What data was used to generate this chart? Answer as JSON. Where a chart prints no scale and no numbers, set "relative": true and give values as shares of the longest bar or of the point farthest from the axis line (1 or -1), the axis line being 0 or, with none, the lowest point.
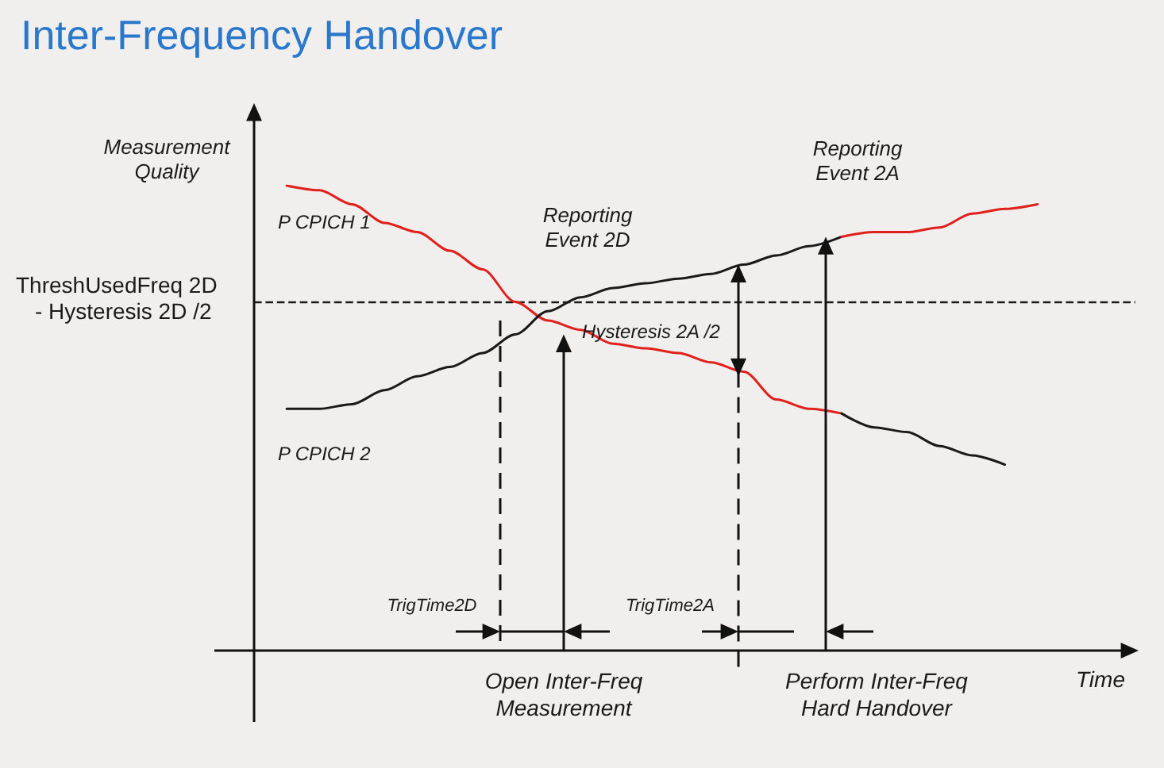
{
  "chart_data": {
    "type": "line",
    "title": "Inter-Frequency Handover",
    "xlabel": "Time",
    "ylabel": "Measurement Quality",
    "relative": true,
    "legend": false,
    "grid": false,
    "marker": "none",
    "line_style": "solid",
    "categories": [
      null,
      null,
      null,
      null,
      null,
      null,
      null,
      null,
      null,
      null,
      null,
      null,
      null,
      null,
      null,
      null,
      null,
      null,
      null,
      null,
      null,
      null,
      null,
      null,
      null,
      null,
      null,
      null
    ],
    "series": [
      {
        "name": "P CPICH 1",
        "color": "#e0201b",
        "values": [
          null,
          1.0,
          0.99,
          0.96,
          0.92,
          0.9,
          0.86,
          0.82,
          0.75,
          0.71,
          0.69,
          0.66,
          0.65,
          0.64,
          0.62,
          0.6,
          0.54,
          0.52,
          0.51,
          null,
          null,
          null,
          null,
          null,
          null,
          null,
          null,
          null
        ]
      },
      {
        "color": "#1a1a1a",
        "values": [
          null,
          null,
          null,
          null,
          null,
          null,
          null,
          null,
          null,
          null,
          null,
          null,
          null,
          null,
          null,
          null,
          null,
          null,
          0.51,
          0.48,
          0.47,
          0.44,
          0.42,
          0.4,
          null,
          null,
          null,
          null
        ]
      },
      {
        "name": "P CPICH 2",
        "color": "#1a1a1a",
        "values": [
          null,
          0.52,
          0.52,
          0.53,
          0.56,
          0.59,
          0.61,
          0.64,
          0.68,
          0.73,
          0.76,
          0.78,
          0.79,
          0.8,
          0.81,
          0.83,
          0.85,
          0.87,
          0.89,
          null,
          null,
          null,
          null,
          null,
          null,
          null,
          null,
          null
        ]
      },
      {
        "color": "#e0201b",
        "values": [
          null,
          null,
          null,
          null,
          null,
          null,
          null,
          null,
          null,
          null,
          null,
          null,
          null,
          null,
          null,
          null,
          null,
          null,
          0.89,
          0.9,
          0.9,
          0.91,
          0.94,
          0.95,
          0.96,
          null,
          null,
          null
        ]
      }
    ],
    "ref_lines": [
      {
        "axis": "y",
        "value": 0.75,
        "label": "ThreshUsedFreq 2D\n- Hysteresis 2D /2",
        "color": "#1a1a1a",
        "line_style": "dashed"
      }
    ],
    "annotations": [
      "Reporting\nEvent 2D",
      "Reporting\nEvent 2A",
      "Hysteresis 2A /2",
      "TrigTime2D",
      "TrigTime2A",
      "Open Inter-Freq\nMeasurement",
      "Perform Inter-Freq\nHard Handover"
    ]
  }
}
